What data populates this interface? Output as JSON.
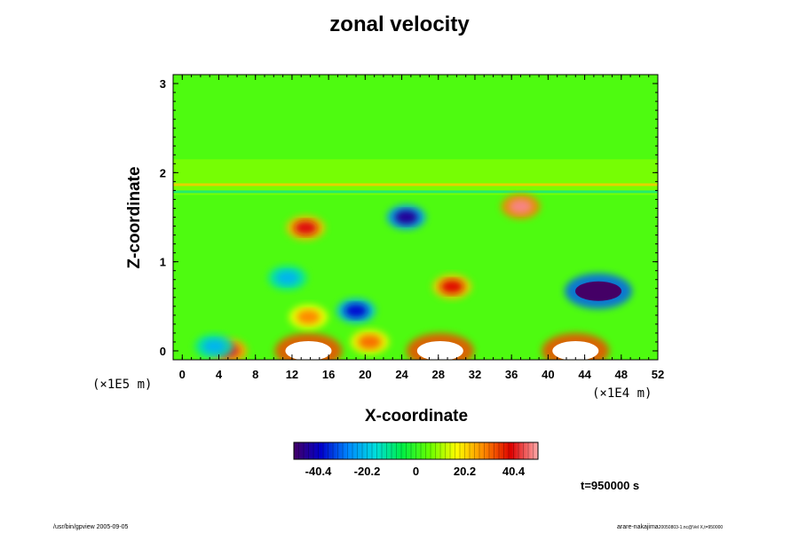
{
  "chart_data": {
    "type": "heatmap",
    "title": "zonal velocity",
    "xlabel": "X-coordinate",
    "ylabel": "Z-coordinate",
    "x_scale_label": "(×1E4 m)",
    "y_scale_label": "(×1E5 m)",
    "xlim": [
      -1,
      52
    ],
    "ylim": [
      -0.1,
      3.1
    ],
    "x_ticks": [
      "0",
      "4",
      "8",
      "12",
      "16",
      "20",
      "24",
      "28",
      "32",
      "36",
      "40",
      "44",
      "48",
      "52"
    ],
    "y_ticks": [
      "0",
      "1",
      "2",
      "3"
    ],
    "colorbar": {
      "ticks": [
        "-40.4",
        "-20.2",
        "0",
        "20.2",
        "40.4"
      ],
      "tick_values": [
        -40.4,
        -20.2,
        0,
        20.2,
        40.4
      ],
      "range": [
        -50.5,
        50.5
      ],
      "colors": [
        "#440066",
        "#0000cc",
        "#0088ff",
        "#00dddd",
        "#00ee44",
        "#66ff00",
        "#ffff00",
        "#ff8800",
        "#dd0000",
        "#ffaaaa"
      ]
    },
    "features": [
      {
        "x": 13.8,
        "z": 0.0,
        "value": 55
      },
      {
        "x": 28.2,
        "z": 0.0,
        "value": 55
      },
      {
        "x": 43.0,
        "z": 0.0,
        "value": 55
      },
      {
        "x": 45.5,
        "z": 0.67,
        "value": -52
      },
      {
        "x": 24.5,
        "z": 1.5,
        "value": -45
      },
      {
        "x": 37.0,
        "z": 1.62,
        "value": 48
      },
      {
        "x": 13.5,
        "z": 1.38,
        "value": 40
      },
      {
        "x": 29.5,
        "z": 0.72,
        "value": 38
      },
      {
        "x": 5.0,
        "z": 0.0,
        "value": 42
      },
      {
        "x": 19.0,
        "z": 0.45,
        "value": -38
      },
      {
        "x": 13.8,
        "z": 0.38,
        "value": 28
      },
      {
        "x": 20.5,
        "z": 0.1,
        "value": 30
      },
      {
        "x": 11.5,
        "z": 0.82,
        "value": -22
      },
      {
        "x": 3.5,
        "z": 0.05,
        "value": -22
      }
    ]
  },
  "timestamp": "t=950000 s",
  "footer": {
    "left": "/usr/bin/gpview 2005-09-05",
    "right": "arare-nakajima",
    "right_small": "20050803-1.nc@Vel X,t=950000"
  }
}
